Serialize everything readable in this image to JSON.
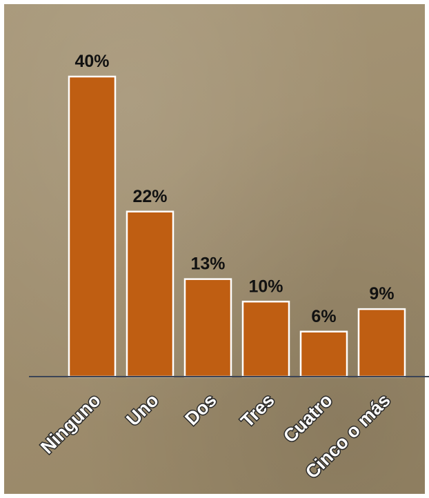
{
  "chart_data": {
    "type": "bar",
    "categories": [
      "Ninguno",
      "Uno",
      "Dos",
      "Tres",
      "Cuatro",
      "Cinco o más"
    ],
    "values": [
      40,
      22,
      13,
      10,
      6,
      9
    ],
    "value_labels": [
      "40%",
      "22%",
      "13%",
      "10%",
      "6%",
      "9%"
    ],
    "title": "",
    "xlabel": "",
    "ylabel": "",
    "ylim": [
      0,
      40
    ],
    "grid": false,
    "legend": "none",
    "colors": {
      "bar_fill": "#bf5e12",
      "bar_stroke": "#ffffff",
      "background": "#a09070",
      "axis": "#3b4456",
      "value_text": "#111111",
      "category_text": "#ffffff"
    }
  }
}
